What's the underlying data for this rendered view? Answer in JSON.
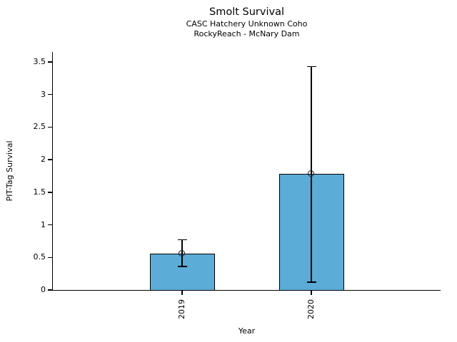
{
  "chart_data": {
    "type": "bar",
    "title": "Smolt Survival",
    "subtitles": [
      "CASC Hatchery Unknown Coho",
      "RockyReach - McNary Dam"
    ],
    "categories": [
      "2019",
      "2020"
    ],
    "values": [
      0.56,
      1.78
    ],
    "error_low": [
      0.36,
      0.12
    ],
    "error_high": [
      0.77,
      3.43
    ],
    "xlabel": "Year",
    "ylabel": "PIT-Tag Survival",
    "ylim": [
      0,
      3.5
    ],
    "ytick_values": [
      0,
      0.5,
      1,
      1.5,
      2,
      2.5,
      3,
      3.5
    ],
    "ytick_labels": [
      "0",
      "0.5",
      "1",
      "1.5",
      "2",
      "2.5",
      "3",
      "3.5"
    ],
    "grid": false,
    "legend_position": "none",
    "marker": "open-circle",
    "bar_color": "#5BACD6",
    "bar_edge_color": "#000000",
    "error_color": "#000000",
    "text_color": "#000000",
    "background_color": "#FFFFFF"
  }
}
